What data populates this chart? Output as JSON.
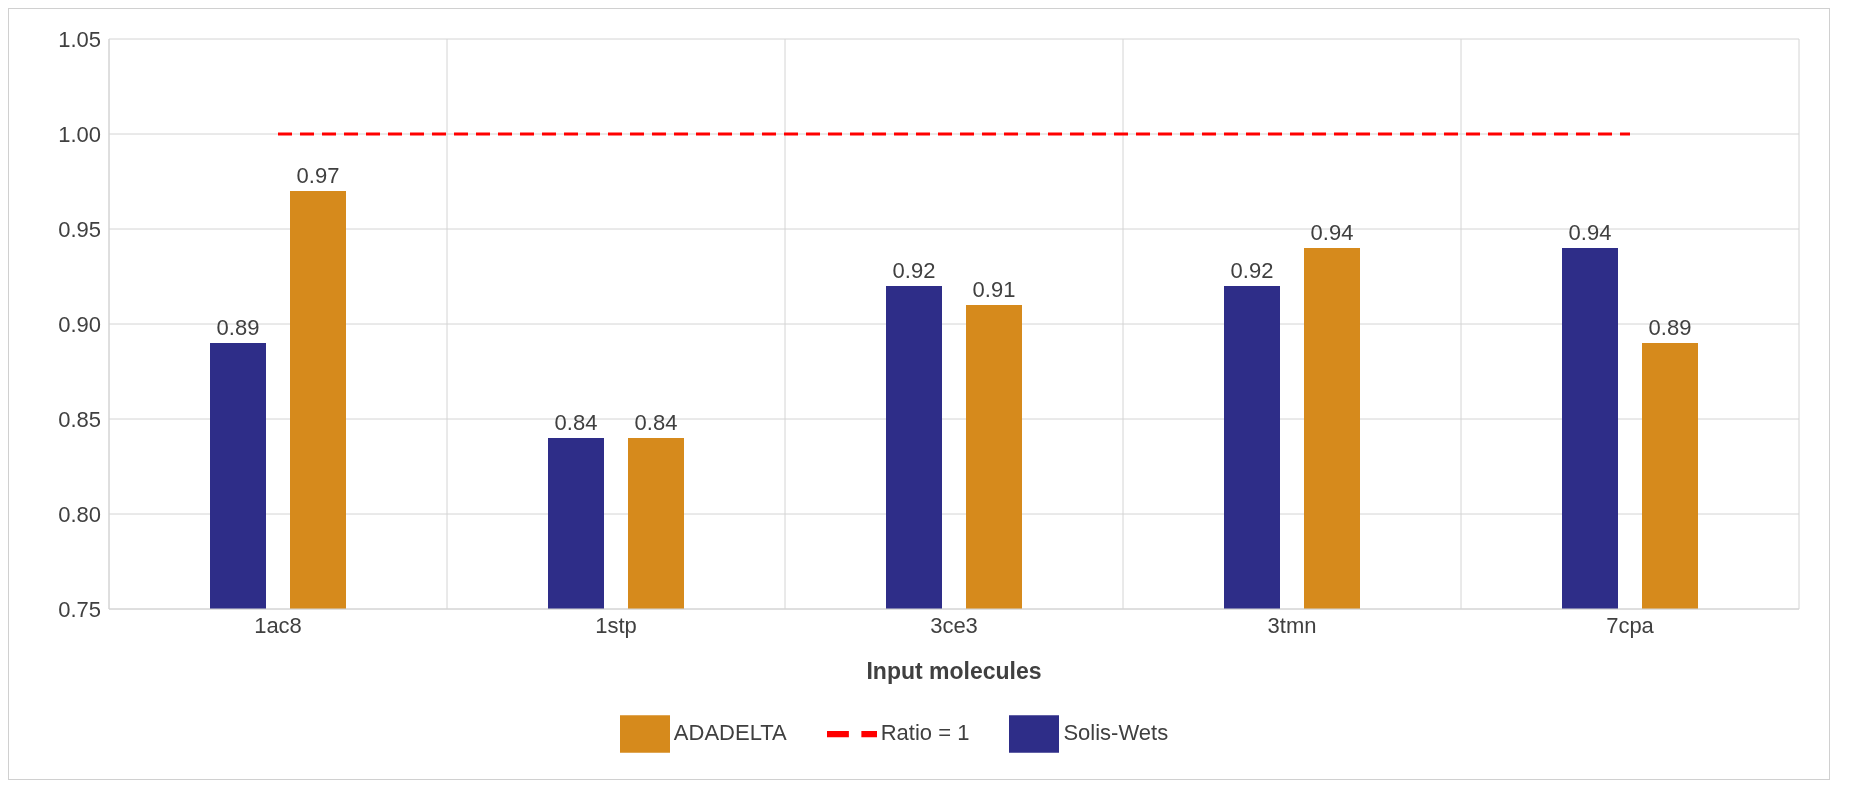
{
  "chart_data": {
    "type": "bar",
    "xlabel": "Input molecules",
    "categories": [
      "1ac8",
      "1stp",
      "3ce3",
      "3tmn",
      "7cpa"
    ],
    "series": [
      {
        "name": "Solis-Wets",
        "color": "#2e2d88",
        "values": [
          0.89,
          0.84,
          0.92,
          0.92,
          0.94
        ],
        "value_labels": [
          "0.89",
          "0.84",
          "0.92",
          "0.92",
          "0.94"
        ]
      },
      {
        "name": "ADADELTA",
        "color": "#d68a1c",
        "values": [
          0.97,
          0.84,
          0.91,
          0.94,
          0.89
        ],
        "value_labels": [
          "0.97",
          "0.84",
          "0.91",
          "0.94",
          "0.89"
        ]
      },
      {
        "name": "Ratio = 1",
        "type": "line",
        "color": "#ff0000",
        "values": [
          1,
          1,
          1,
          1,
          1
        ],
        "line_style": "dashed",
        "marker": "none"
      }
    ],
    "ylim": [
      0.75,
      1.05
    ],
    "yticks": [
      {
        "value": 0.75,
        "label": "0.75"
      },
      {
        "value": 0.8,
        "label": "0.80"
      },
      {
        "value": 0.85,
        "label": "0.85"
      },
      {
        "value": 0.9,
        "label": "0.90"
      },
      {
        "value": 0.95,
        "label": "0.95"
      },
      {
        "value": 1,
        "label": "1.00"
      },
      {
        "value": 1.05,
        "label": "1.05"
      }
    ],
    "grid": true,
    "legend": "bottom"
  }
}
